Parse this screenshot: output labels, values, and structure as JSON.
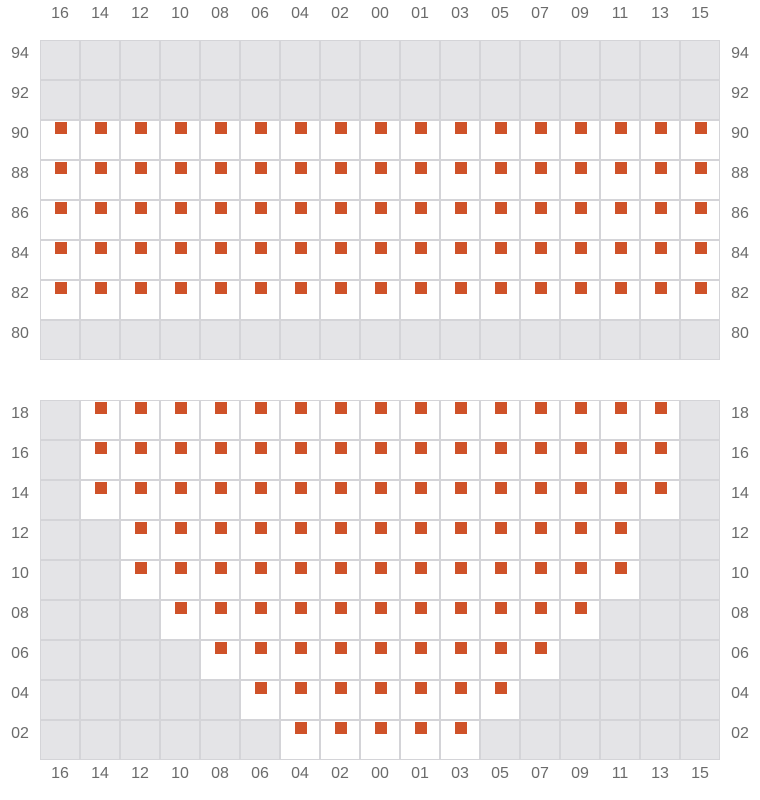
{
  "columns": [
    "16",
    "14",
    "12",
    "10",
    "08",
    "06",
    "04",
    "02",
    "00",
    "01",
    "03",
    "05",
    "07",
    "09",
    "11",
    "13",
    "15"
  ],
  "colors": {
    "seat": "#cf5229",
    "unavailable": "#e4e4e7",
    "open": "#ffffff",
    "grid": "#d4d4d8"
  },
  "sections": [
    {
      "rows": [
        {
          "label": "94",
          "seats": []
        },
        {
          "label": "92",
          "seats": []
        },
        {
          "label": "90",
          "seats": [
            "16",
            "14",
            "12",
            "10",
            "08",
            "06",
            "04",
            "02",
            "00",
            "01",
            "03",
            "05",
            "07",
            "09",
            "11",
            "13",
            "15"
          ]
        },
        {
          "label": "88",
          "seats": [
            "16",
            "14",
            "12",
            "10",
            "08",
            "06",
            "04",
            "02",
            "00",
            "01",
            "03",
            "05",
            "07",
            "09",
            "11",
            "13",
            "15"
          ]
        },
        {
          "label": "86",
          "seats": [
            "16",
            "14",
            "12",
            "10",
            "08",
            "06",
            "04",
            "02",
            "00",
            "01",
            "03",
            "05",
            "07",
            "09",
            "11",
            "13",
            "15"
          ]
        },
        {
          "label": "84",
          "seats": [
            "16",
            "14",
            "12",
            "10",
            "08",
            "06",
            "04",
            "02",
            "00",
            "01",
            "03",
            "05",
            "07",
            "09",
            "11",
            "13",
            "15"
          ]
        },
        {
          "label": "82",
          "seats": [
            "16",
            "14",
            "12",
            "10",
            "08",
            "06",
            "04",
            "02",
            "00",
            "01",
            "03",
            "05",
            "07",
            "09",
            "11",
            "13",
            "15"
          ]
        },
        {
          "label": "80",
          "seats": []
        }
      ]
    },
    {
      "rows": [
        {
          "label": "18",
          "seats": [
            "14",
            "12",
            "10",
            "08",
            "06",
            "04",
            "02",
            "00",
            "01",
            "03",
            "05",
            "07",
            "09",
            "11",
            "13"
          ]
        },
        {
          "label": "16",
          "seats": [
            "14",
            "12",
            "10",
            "08",
            "06",
            "04",
            "02",
            "00",
            "01",
            "03",
            "05",
            "07",
            "09",
            "11",
            "13"
          ]
        },
        {
          "label": "14",
          "seats": [
            "14",
            "12",
            "10",
            "08",
            "06",
            "04",
            "02",
            "00",
            "01",
            "03",
            "05",
            "07",
            "09",
            "11",
            "13"
          ]
        },
        {
          "label": "12",
          "seats": [
            "12",
            "10",
            "08",
            "06",
            "04",
            "02",
            "00",
            "01",
            "03",
            "05",
            "07",
            "09",
            "11"
          ]
        },
        {
          "label": "10",
          "seats": [
            "12",
            "10",
            "08",
            "06",
            "04",
            "02",
            "00",
            "01",
            "03",
            "05",
            "07",
            "09",
            "11"
          ]
        },
        {
          "label": "08",
          "seats": [
            "10",
            "08",
            "06",
            "04",
            "02",
            "00",
            "01",
            "03",
            "05",
            "07",
            "09"
          ]
        },
        {
          "label": "06",
          "seats": [
            "08",
            "06",
            "04",
            "02",
            "00",
            "01",
            "03",
            "05",
            "07"
          ]
        },
        {
          "label": "04",
          "seats": [
            "06",
            "04",
            "02",
            "00",
            "01",
            "03",
            "05"
          ]
        },
        {
          "label": "02",
          "seats": [
            "04",
            "02",
            "00",
            "01",
            "03"
          ]
        }
      ]
    }
  ]
}
